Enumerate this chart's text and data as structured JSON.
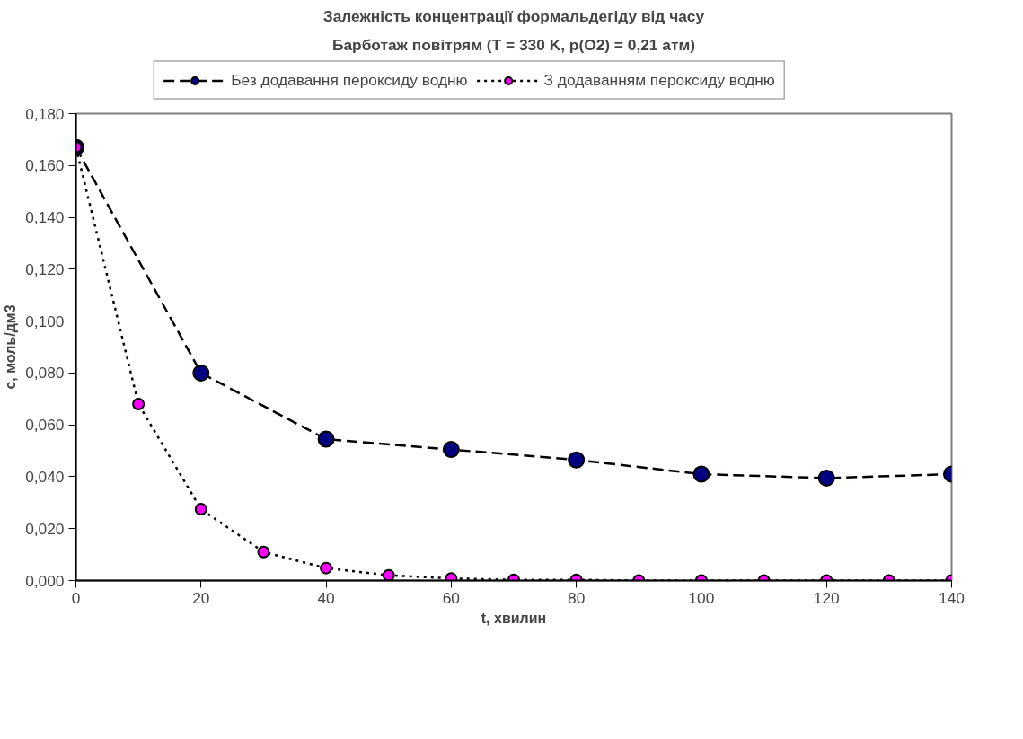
{
  "chart_data": {
    "type": "line",
    "title": "Залежність концентрації формальдегіду від часу",
    "subtitle": "Барботаж повітрям (T = 330 K, p(O2) = 0,21 атм)",
    "xlabel": "t, хвилин",
    "ylabel": "c, моль/дм3",
    "xlim": [
      0,
      140
    ],
    "xticks": [
      0,
      20,
      40,
      60,
      80,
      100,
      120,
      140
    ],
    "ylim": [
      0,
      0.18
    ],
    "yticks": [
      {
        "value": 0,
        "label": "0,000"
      },
      {
        "value": 0.02,
        "label": "0,020"
      },
      {
        "value": 0.04,
        "label": "0,040"
      },
      {
        "value": 0.06,
        "label": "0,060"
      },
      {
        "value": 0.08,
        "label": "0,080"
      },
      {
        "value": 0.1,
        "label": "0,100"
      },
      {
        "value": 0.12,
        "label": "0,120"
      },
      {
        "value": 0.14,
        "label": "0,140"
      },
      {
        "value": 0.16,
        "label": "0,160"
      },
      {
        "value": 0.18,
        "label": "0,180"
      }
    ],
    "grid": false,
    "legend": "top",
    "marker": "circle",
    "series": [
      {
        "name": "Без додавання пероксиду водню",
        "color": "#000080",
        "line_style": "dashed",
        "x": [
          0,
          20,
          40,
          60,
          80,
          100,
          120,
          140
        ],
        "values": [
          0.167,
          0.08,
          0.0545,
          0.0505,
          0.0465,
          0.041,
          0.0395,
          0.041
        ]
      },
      {
        "name": "З додаванням пероксиду водню",
        "color": "#ff00ff",
        "line_style": "dotted",
        "x": [
          0,
          10,
          20,
          30,
          40,
          50,
          60,
          70,
          80,
          90,
          100,
          110,
          120,
          130,
          140
        ],
        "values": [
          0.167,
          0.068,
          0.0275,
          0.011,
          0.0048,
          0.002,
          0.0008,
          0.0003,
          0.0003,
          0,
          0,
          0,
          0,
          0,
          0
        ]
      }
    ]
  }
}
